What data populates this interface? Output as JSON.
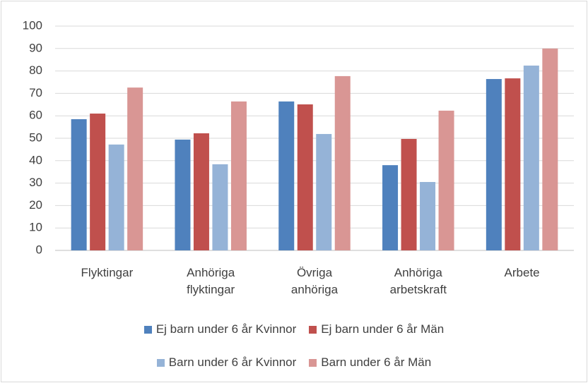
{
  "chart_data": {
    "type": "bar",
    "categories": [
      "Flyktingar",
      "Anhöriga flyktingar",
      "Övriga anhöriga",
      "Anhöriga arbetskraft",
      "Arbete"
    ],
    "series": [
      {
        "name": "Ej barn under 6 år Kvinnor",
        "color": "#4f81bd",
        "values": [
          58.5,
          49.4,
          66.4,
          38,
          76.4
        ]
      },
      {
        "name": "Ej barn under 6 år Män",
        "color": "#c0504d",
        "values": [
          61,
          52.2,
          65.1,
          49.7,
          76.7
        ]
      },
      {
        "name": "Barn under 6 år Kvinnor",
        "color": "#95b3d7",
        "values": [
          47.2,
          38.4,
          51.9,
          30.5,
          82.4
        ]
      },
      {
        "name": "Barn under 6 år Män",
        "color": "#d99694",
        "values": [
          72.6,
          66.4,
          77.7,
          62.3,
          90
        ]
      }
    ],
    "ylim": [
      0,
      100
    ],
    "yticks": [
      0,
      10,
      20,
      30,
      40,
      50,
      60,
      70,
      80,
      90,
      100
    ],
    "grid": true
  }
}
